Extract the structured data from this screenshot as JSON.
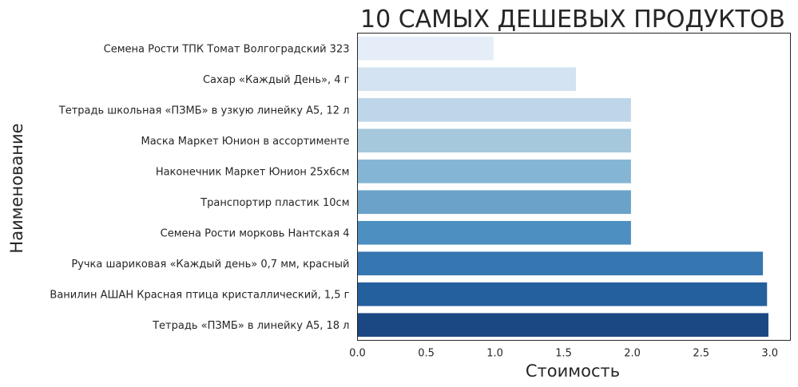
{
  "chart_data": {
    "type": "bar",
    "orientation": "horizontal",
    "title": "10 САМЫХ ДЕШЕВЫХ ПРОДУКТОВ",
    "xlabel": "Стоимость",
    "ylabel": "Наименование",
    "xlim": [
      0,
      3.15
    ],
    "xticks": [
      "0.0",
      "0.5",
      "1.0",
      "1.5",
      "2.0",
      "2.5",
      "3.0"
    ],
    "grid": false,
    "categories": [
      "Семена Рости ТПК Томат Волгоградский 323",
      "Сахар «Каждый День», 4 г",
      "Тетрадь школьная «ПЗМБ» в узкую линейку А5, 12 л",
      "Маска Маркет Юнион в ассортименте",
      "Наконечник Маркет Юнион 25х6см",
      "Транспортир пластик 10см",
      "Семена Рости морковь Нантская 4",
      "Ручка шариковая «Каждый день» 0,7 мм, красный",
      "Ванилин АШАН Красная птица кристаллический, 1,5 г",
      "Тетрадь «ПЗМБ» в линейку А5, 18 л"
    ],
    "values": [
      0.99,
      1.59,
      1.99,
      1.99,
      1.99,
      1.99,
      1.99,
      2.95,
      2.98,
      2.99
    ],
    "colors": [
      "#e5eef8",
      "#d4e3f2",
      "#bed6e9",
      "#a5c8dd",
      "#85b5d4",
      "#6aa2c9",
      "#4d8fc0",
      "#3676b1",
      "#245f9e",
      "#1b4882"
    ]
  }
}
